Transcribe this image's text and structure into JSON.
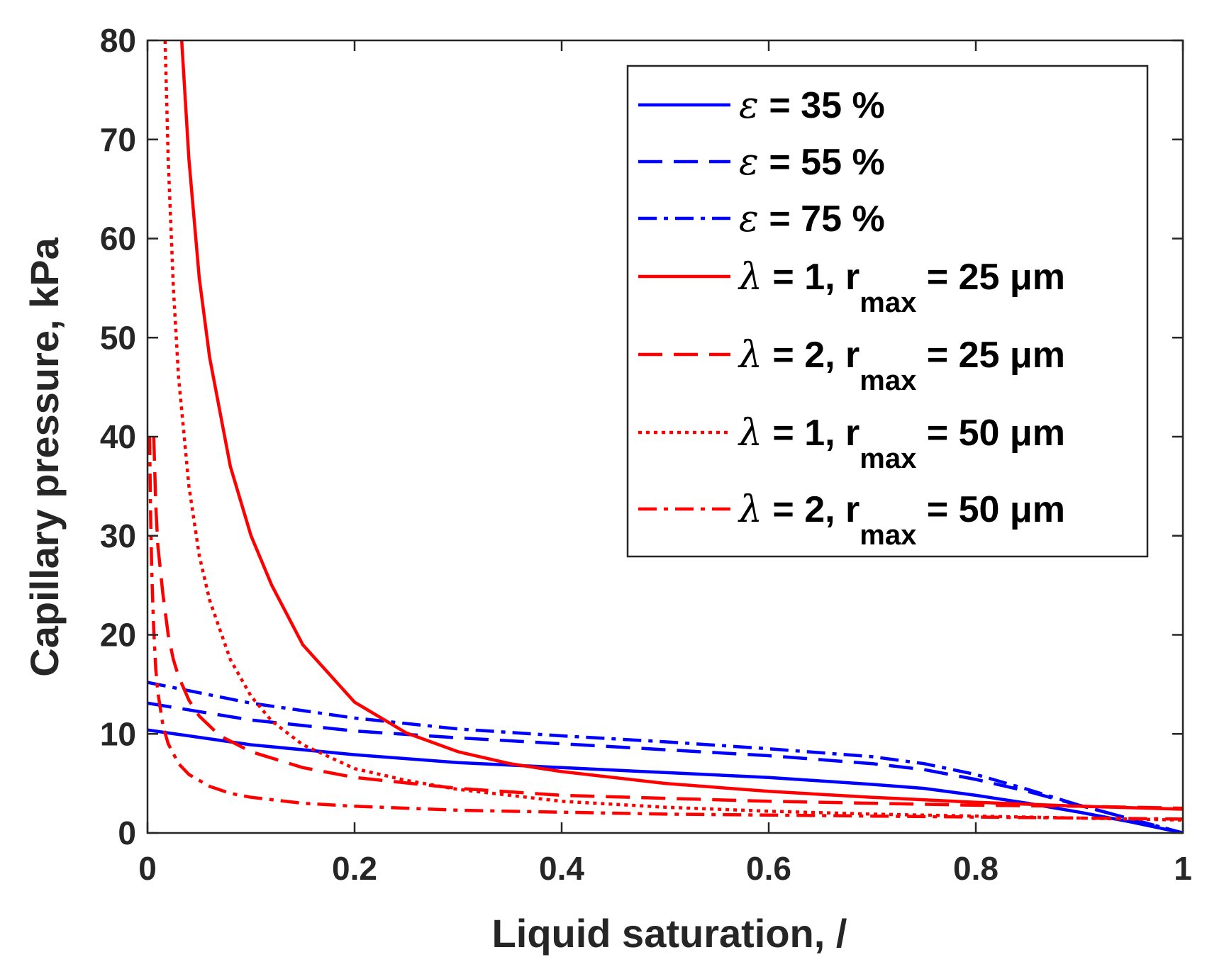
{
  "chart_data": {
    "type": "line",
    "title": "",
    "xlabel": "Liquid saturation, /",
    "ylabel": "Capillary pressure, kPa",
    "xlim": [
      0,
      1
    ],
    "ylim": [
      0,
      80
    ],
    "xticks": [
      0,
      0.2,
      0.4,
      0.6,
      0.8,
      1
    ],
    "xtick_labels": [
      "0",
      "0.2",
      "0.4",
      "0.6",
      "0.8",
      "1"
    ],
    "yticks": [
      0,
      10,
      20,
      30,
      40,
      50,
      60,
      70,
      80
    ],
    "ytick_labels": [
      "0",
      "10",
      "20",
      "30",
      "40",
      "50",
      "60",
      "70",
      "80"
    ],
    "grid": false,
    "legend_position": "top-right",
    "colors": {
      "blue": "#0000ff",
      "red": "#ff0000",
      "axis": "#262626"
    },
    "series": [
      {
        "name": "ε = 35 %",
        "symbol": "ε",
        "label_rest": " = 35 %",
        "subscript": "",
        "label_tail": "",
        "color": "#0000ff",
        "style": "solid",
        "x": [
          0,
          0.1,
          0.2,
          0.3,
          0.4,
          0.5,
          0.6,
          0.7,
          0.75,
          0.8,
          0.85,
          0.9,
          0.95,
          1.0
        ],
        "y": [
          10.4,
          8.9,
          7.9,
          7.1,
          6.6,
          6.1,
          5.6,
          4.9,
          4.5,
          3.8,
          3.0,
          2.1,
          1.1,
          0
        ]
      },
      {
        "name": "ε = 55 %",
        "symbol": "ε",
        "label_rest": " = 55 %",
        "subscript": "",
        "label_tail": "",
        "color": "#0000ff",
        "style": "dashed",
        "x": [
          0,
          0.1,
          0.2,
          0.3,
          0.4,
          0.5,
          0.6,
          0.7,
          0.75,
          0.8,
          0.85,
          0.9,
          0.95,
          1.0
        ],
        "y": [
          13.1,
          11.4,
          10.3,
          9.6,
          9.0,
          8.4,
          7.8,
          7.0,
          6.4,
          5.4,
          4.2,
          2.8,
          1.4,
          0
        ]
      },
      {
        "name": "ε = 75 %",
        "symbol": "ε",
        "label_rest": " = 75 %",
        "subscript": "",
        "label_tail": "",
        "color": "#0000ff",
        "style": "dashdot",
        "x": [
          0,
          0.1,
          0.2,
          0.3,
          0.4,
          0.5,
          0.6,
          0.7,
          0.75,
          0.8,
          0.85,
          0.9,
          0.95,
          1.0
        ],
        "y": [
          15.2,
          13.1,
          11.6,
          10.5,
          9.8,
          9.2,
          8.5,
          7.7,
          7.0,
          5.9,
          4.4,
          2.8,
          1.4,
          0
        ]
      },
      {
        "name": "λ = 1, rmax = 25 μm",
        "symbol": "λ",
        "label_rest": " = 1, r",
        "subscript": "max",
        "label_tail": " = 25 μm",
        "color": "#ff0000",
        "style": "solid",
        "x": [
          0.033,
          0.04,
          0.05,
          0.06,
          0.08,
          0.1,
          0.12,
          0.15,
          0.2,
          0.25,
          0.3,
          0.35,
          0.4,
          0.5,
          0.6,
          0.7,
          0.8,
          0.9,
          1.0
        ],
        "y": [
          80,
          68,
          56,
          48,
          37,
          30,
          25,
          19,
          13.2,
          10.1,
          8.2,
          7.0,
          6.2,
          5.0,
          4.2,
          3.6,
          3.1,
          2.7,
          2.4
        ]
      },
      {
        "name": "λ = 2, rmax = 25 μm",
        "symbol": "λ",
        "label_rest": " = 2, r",
        "subscript": "max",
        "label_tail": " = 25 μm",
        "color": "#ff0000",
        "style": "dashed",
        "x": [
          0.006,
          0.008,
          0.01,
          0.015,
          0.02,
          0.025,
          0.03,
          0.04,
          0.05,
          0.07,
          0.1,
          0.15,
          0.2,
          0.3,
          0.4,
          0.5,
          0.6,
          0.7,
          0.8,
          0.9,
          1.0
        ],
        "y": [
          40,
          33,
          29,
          24,
          20,
          17.5,
          15.8,
          13.4,
          11.8,
          9.8,
          8.2,
          6.6,
          5.6,
          4.5,
          3.8,
          3.5,
          3.2,
          3.0,
          2.8,
          2.7,
          2.5
        ]
      },
      {
        "name": "λ = 1, rmax = 50 μm",
        "symbol": "λ",
        "label_rest": " = 1, r",
        "subscript": "max",
        "label_tail": " = 50 μm",
        "color": "#ff0000",
        "style": "dotted",
        "x": [
          0.017,
          0.02,
          0.025,
          0.03,
          0.04,
          0.05,
          0.06,
          0.08,
          0.1,
          0.12,
          0.15,
          0.2,
          0.25,
          0.3,
          0.4,
          0.5,
          0.6,
          0.7,
          0.8,
          0.9,
          1.0
        ],
        "y": [
          80,
          68,
          55,
          46,
          35,
          28,
          23.5,
          17.5,
          13.8,
          11.3,
          8.9,
          6.5,
          5.3,
          4.4,
          3.2,
          2.6,
          2.2,
          1.9,
          1.7,
          1.5,
          1.3
        ]
      },
      {
        "name": "λ = 2, rmax = 50 μm",
        "symbol": "λ",
        "label_rest": " = 2, r",
        "subscript": "max",
        "label_tail": " = 50 μm",
        "color": "#ff0000",
        "style": "dashdot",
        "x": [
          0.002,
          0.003,
          0.004,
          0.005,
          0.006,
          0.008,
          0.01,
          0.015,
          0.02,
          0.03,
          0.04,
          0.06,
          0.08,
          0.1,
          0.15,
          0.2,
          0.3,
          0.4,
          0.5,
          0.6,
          0.7,
          0.8,
          0.9,
          1.0
        ],
        "y": [
          40,
          32,
          27,
          23.5,
          20.5,
          16.5,
          14.2,
          10.8,
          9.0,
          7.0,
          5.9,
          4.7,
          4.0,
          3.6,
          3.0,
          2.7,
          2.3,
          2.1,
          1.9,
          1.8,
          1.7,
          1.6,
          1.5,
          1.4
        ]
      }
    ]
  }
}
